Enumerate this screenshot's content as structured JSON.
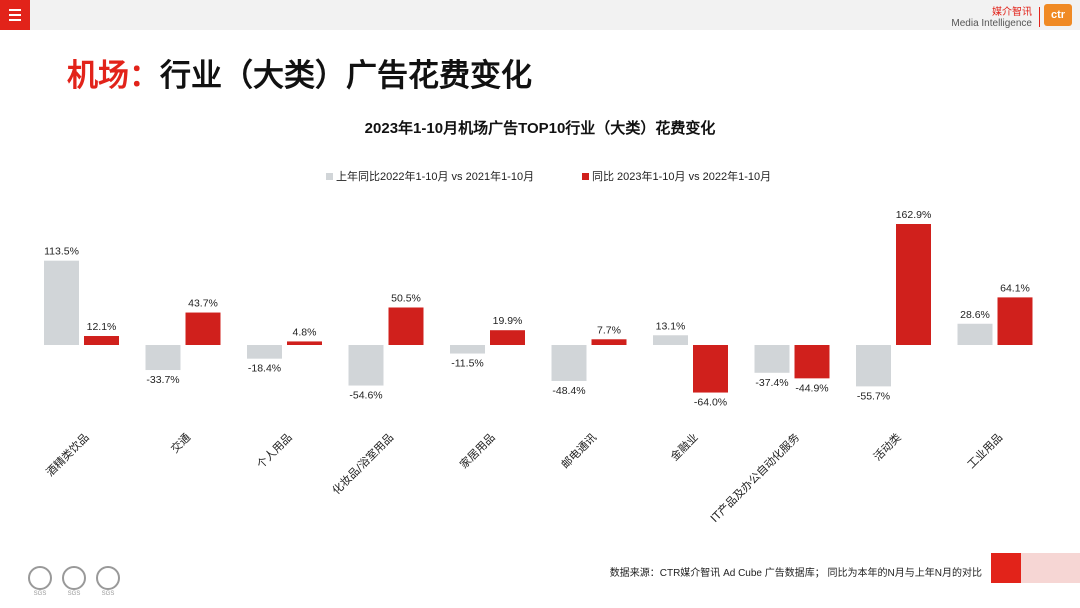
{
  "header": {
    "brand_cn": "媒介智讯",
    "brand_en": "Media Intelligence",
    "brand_logo_text": "ctr",
    "accent_color": "#e2231a",
    "logo_color": "#f08a24"
  },
  "slide": {
    "title_prefix": "机场：",
    "title_main": "行业（大类）广告花费变化"
  },
  "chart_data": {
    "type": "bar",
    "title": "2023年1-10月机场广告TOP10行业（大类）花费变化",
    "categories": [
      "酒精类饮品",
      "交通",
      "个人用品",
      "化妆品/浴室用品",
      "家居用品",
      "邮电通讯",
      "金融业",
      "IT产品及办公自动化服务",
      "活动类",
      "工业用品"
    ],
    "series": [
      {
        "name": "上年同比2022年1-10月  vs  2021年1-10月",
        "color": "#d1d5d8",
        "values": [
          113.5,
          -33.7,
          -18.4,
          -54.6,
          -11.5,
          -48.4,
          13.1,
          -37.4,
          -55.7,
          28.6
        ],
        "labels": [
          "113.5%",
          "-33.7%",
          "-18.4%",
          "-54.6%",
          "-11.5%",
          "-48.4%",
          "13.1%",
          "-37.4%",
          "-55.7%",
          "28.6%"
        ]
      },
      {
        "name": "同比 2023年1-10月  vs  2022年1-10月",
        "color": "#d0201c",
        "values": [
          12.1,
          43.7,
          4.8,
          50.5,
          19.9,
          7.7,
          -64.0,
          -44.9,
          162.9,
          64.1
        ],
        "labels": [
          "12.1%",
          "43.7%",
          "4.8%",
          "50.5%",
          "19.9%",
          "7.7%",
          "-64.0%",
          "-44.9%",
          "162.9%",
          "64.1%"
        ]
      }
    ],
    "legend_position": "top",
    "grid": false
  },
  "footer": {
    "source": "数据来源：CTR媒介智讯 Ad Cube 广告数据库；  同比为本年的N月与上年N月的对比",
    "cert_label": "SGS"
  }
}
